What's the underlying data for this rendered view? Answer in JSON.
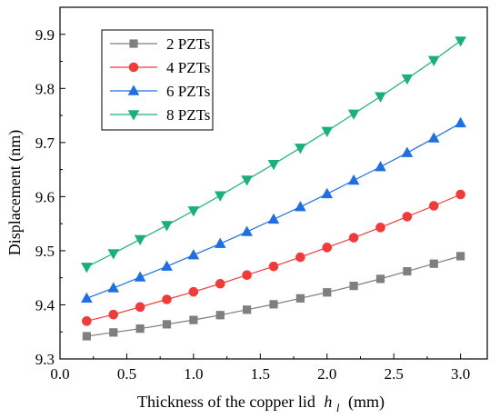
{
  "chart_data": {
    "type": "line",
    "xlabel": "Thickness of the copper lid",
    "xlabel_symbol": "h",
    "xlabel_subscript": "l",
    "xlabel_unit": "(mm)",
    "ylabel": "Displacement (nm)",
    "xlim": [
      0.0,
      3.2
    ],
    "ylim": [
      9.3,
      9.95
    ],
    "xticks": [
      0.0,
      0.5,
      1.0,
      1.5,
      2.0,
      2.5,
      3.0
    ],
    "xtick_labels": [
      "0.0",
      "0.5",
      "1.0",
      "1.5",
      "2.0",
      "2.5",
      "3.0"
    ],
    "yticks": [
      9.3,
      9.4,
      9.5,
      9.6,
      9.7,
      9.8,
      9.9
    ],
    "ytick_labels": [
      "9.3",
      "9.4",
      "9.5",
      "9.6",
      "9.7",
      "9.8",
      "9.9"
    ],
    "grid": false,
    "legend_position": "top-left",
    "x": [
      0.2,
      0.4,
      0.6,
      0.8,
      1.0,
      1.2,
      1.4,
      1.6,
      1.8,
      2.0,
      2.2,
      2.4,
      2.6,
      2.8,
      3.0
    ],
    "series": [
      {
        "name": "2 PZTs",
        "color": "#7f7f7f",
        "marker": "square",
        "values": [
          9.342,
          9.349,
          9.356,
          9.364,
          9.372,
          9.381,
          9.391,
          9.401,
          9.412,
          9.423,
          9.435,
          9.448,
          9.462,
          9.476,
          9.49
        ]
      },
      {
        "name": "4 PZTs",
        "color": "#f03b3b",
        "marker": "circle",
        "values": [
          9.37,
          9.382,
          9.396,
          9.41,
          9.424,
          9.439,
          9.455,
          9.471,
          9.488,
          9.506,
          9.524,
          9.543,
          9.563,
          9.583,
          9.604
        ]
      },
      {
        "name": "6 PZTs",
        "color": "#1f6fe0",
        "marker": "triangle-up",
        "values": [
          9.412,
          9.431,
          9.451,
          9.471,
          9.492,
          9.513,
          9.535,
          9.558,
          9.581,
          9.605,
          9.63,
          9.655,
          9.681,
          9.708,
          9.736
        ]
      },
      {
        "name": "8 PZTs",
        "color": "#1bb07a",
        "marker": "triangle-down",
        "values": [
          9.47,
          9.495,
          9.521,
          9.547,
          9.574,
          9.602,
          9.631,
          9.66,
          9.69,
          9.721,
          9.753,
          9.785,
          9.818,
          9.852,
          9.888
        ]
      }
    ]
  }
}
